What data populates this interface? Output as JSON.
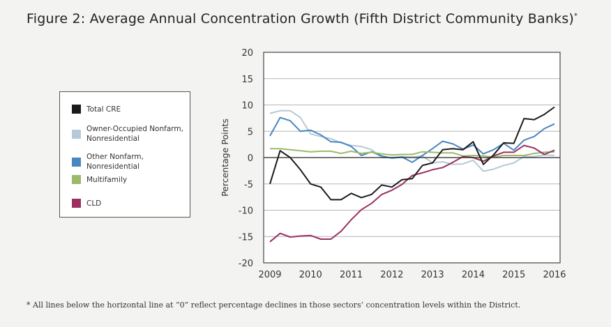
{
  "title": "Figure 2: Average Annual Concentration Growth (Fifth District Community Banks)",
  "title_mark": "*",
  "footnote": "* All lines below the horizontal line at “0” reflect percentage declines in those sectors’ concentration levels within the District.",
  "chart_data": {
    "type": "line",
    "title": "Figure 2: Average Annual Concentration Growth (Fifth District Community Banks)",
    "xlabel": "",
    "ylabel": "Percentage Points",
    "xlim": [
      2009,
      2016
    ],
    "ylim": [
      -20,
      20
    ],
    "x_ticks": [
      "2009",
      "2010",
      "2011",
      "2012",
      "2013",
      "2014",
      "2015",
      "2016"
    ],
    "y_ticks": [
      "20",
      "15",
      "10",
      "5",
      "0",
      "-5",
      "-10",
      "-15",
      "-20"
    ],
    "grid": true,
    "legend": "left",
    "x": [
      2009,
      2009.25,
      2009.5,
      2009.75,
      2010,
      2010.25,
      2010.5,
      2010.75,
      2011,
      2011.25,
      2011.5,
      2011.75,
      2012,
      2012.25,
      2012.5,
      2012.75,
      2013,
      2013.25,
      2013.5,
      2013.75,
      2014,
      2014.25,
      2014.5,
      2014.75,
      2015,
      2015.25,
      2015.5,
      2015.75,
      2016
    ],
    "series": [
      {
        "name": "Total CRE",
        "color": "#1a1a1a",
        "values": [
          -5,
          1.3,
          0,
          -2.3,
          -5,
          -5.6,
          -8,
          -8,
          -6.8,
          -7.6,
          -7,
          -5.2,
          -5.6,
          -4.2,
          -4,
          -1.5,
          -1,
          1.5,
          1.7,
          1.5,
          3,
          -1.3,
          0.5,
          2.8,
          2.7,
          7.4,
          7.2,
          8.2,
          9.6
        ]
      },
      {
        "name": "Owner-Occupied Nonfarm, Nonresidential",
        "color": "#b5c9d8",
        "values": [
          8.4,
          8.9,
          8.9,
          7.6,
          4.5,
          4,
          3.6,
          2.8,
          2.3,
          2.1,
          1.5,
          0,
          0,
          0.2,
          0.1,
          0.3,
          -1,
          -0.8,
          -1.3,
          -1.2,
          -0.5,
          -2.6,
          -2.2,
          -1.5,
          -1,
          0.2,
          0.2,
          0.5,
          0.4
        ]
      },
      {
        "name": "Other Nonfarm, Nonresidential",
        "color": "#4a86c0",
        "values": [
          4.1,
          7.6,
          7,
          5,
          5.2,
          4.3,
          3,
          2.9,
          2.1,
          0.4,
          1.1,
          0.3,
          -0.1,
          0.1,
          -0.9,
          0.4,
          1.7,
          3.1,
          2.6,
          1.6,
          2.4,
          0.7,
          1.5,
          2.7,
          1.4,
          3.3,
          4,
          5.5,
          6.4
        ]
      },
      {
        "name": "Multifamily",
        "color": "#9cba6a",
        "values": [
          1.7,
          1.7,
          1.5,
          1.3,
          1.1,
          1.2,
          1.2,
          0.8,
          1.2,
          0.8,
          1,
          0.7,
          0.5,
          0.6,
          0.6,
          1.1,
          1,
          0.9,
          0.9,
          0.3,
          0.4,
          0.3,
          0.1,
          0.4,
          0.4,
          0.4,
          0.8,
          1,
          1.1
        ]
      },
      {
        "name": "CLD",
        "color": "#9b3060",
        "values": [
          -16,
          -14.4,
          -15.1,
          -14.9,
          -14.8,
          -15.5,
          -15.5,
          -14,
          -11.8,
          -9.9,
          -8.7,
          -7,
          -6.2,
          -5.1,
          -3.4,
          -2.9,
          -2.3,
          -1.9,
          -0.9,
          0.2,
          0,
          -0.7,
          0.3,
          1,
          1,
          2.3,
          1.8,
          0.6,
          1.4
        ]
      }
    ]
  }
}
